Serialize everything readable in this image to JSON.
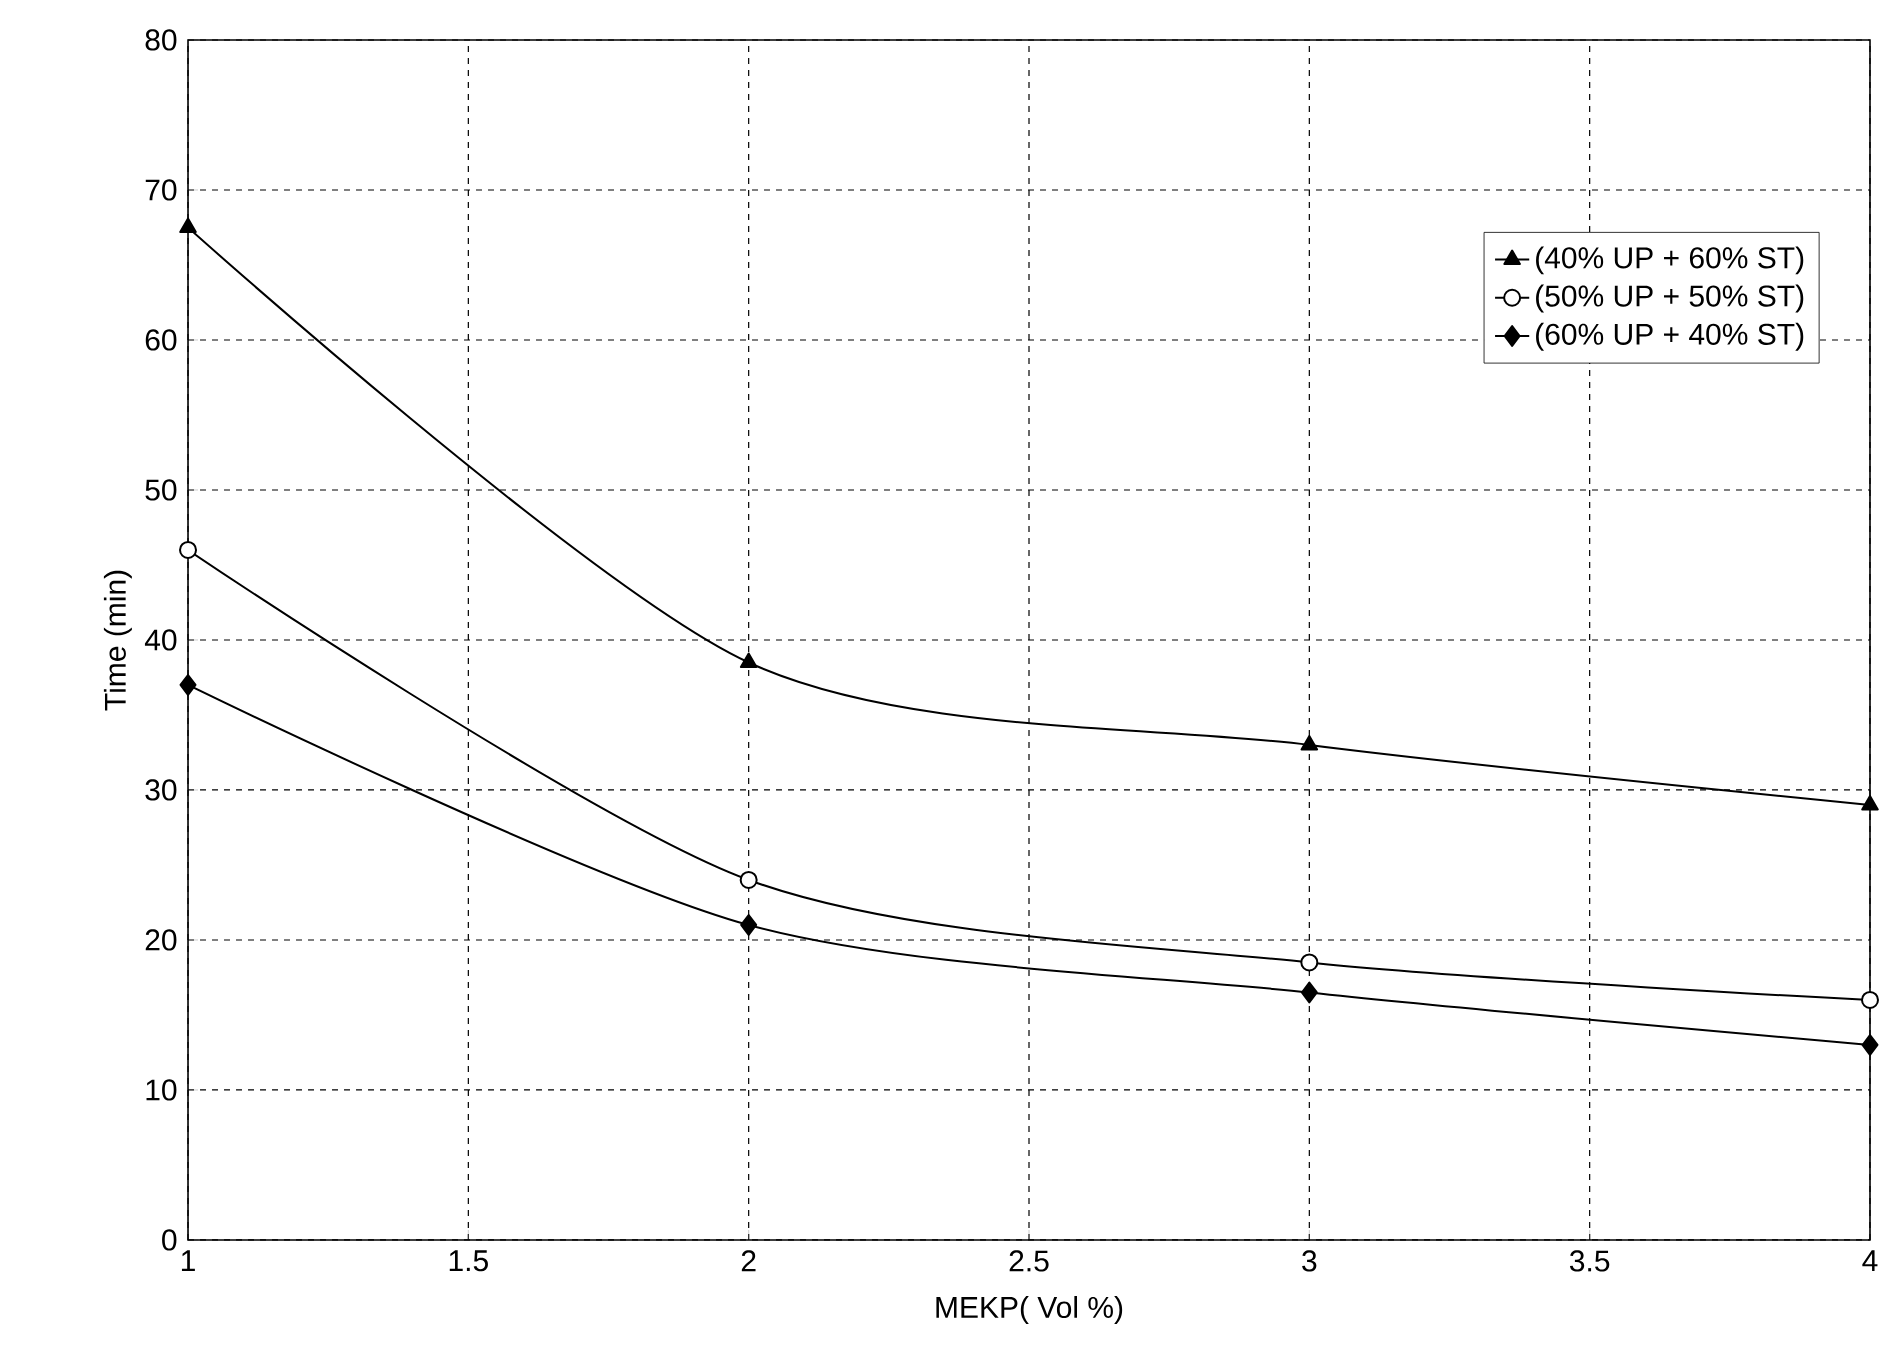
{
  "chart_data": {
    "type": "line",
    "xlabel": "MEKP( Vol %)",
    "ylabel": "Time  (min)",
    "x": [
      1,
      2,
      3,
      4
    ],
    "series": [
      {
        "name": "(40% UP + 60% ST)",
        "color": "#000000",
        "marker": "triangle",
        "values": [
          67.5,
          38.5,
          33,
          29
        ]
      },
      {
        "name": "(50% UP + 50% ST)",
        "color": "#000000",
        "marker": "circle",
        "values": [
          46,
          24,
          18.5,
          16
        ]
      },
      {
        "name": "(60% UP + 40% ST)",
        "color": "#000000",
        "marker": "diamond",
        "values": [
          37,
          21,
          16.5,
          13
        ]
      }
    ],
    "xlim": [
      1,
      4
    ],
    "ylim": [
      0,
      80
    ],
    "xticks": [
      1,
      1.5,
      2,
      2.5,
      3,
      3.5,
      4
    ],
    "yticks": [
      0,
      10,
      20,
      30,
      40,
      50,
      60,
      70,
      80
    ],
    "grid": true,
    "legend": "top right",
    "line_style": "solid"
  }
}
